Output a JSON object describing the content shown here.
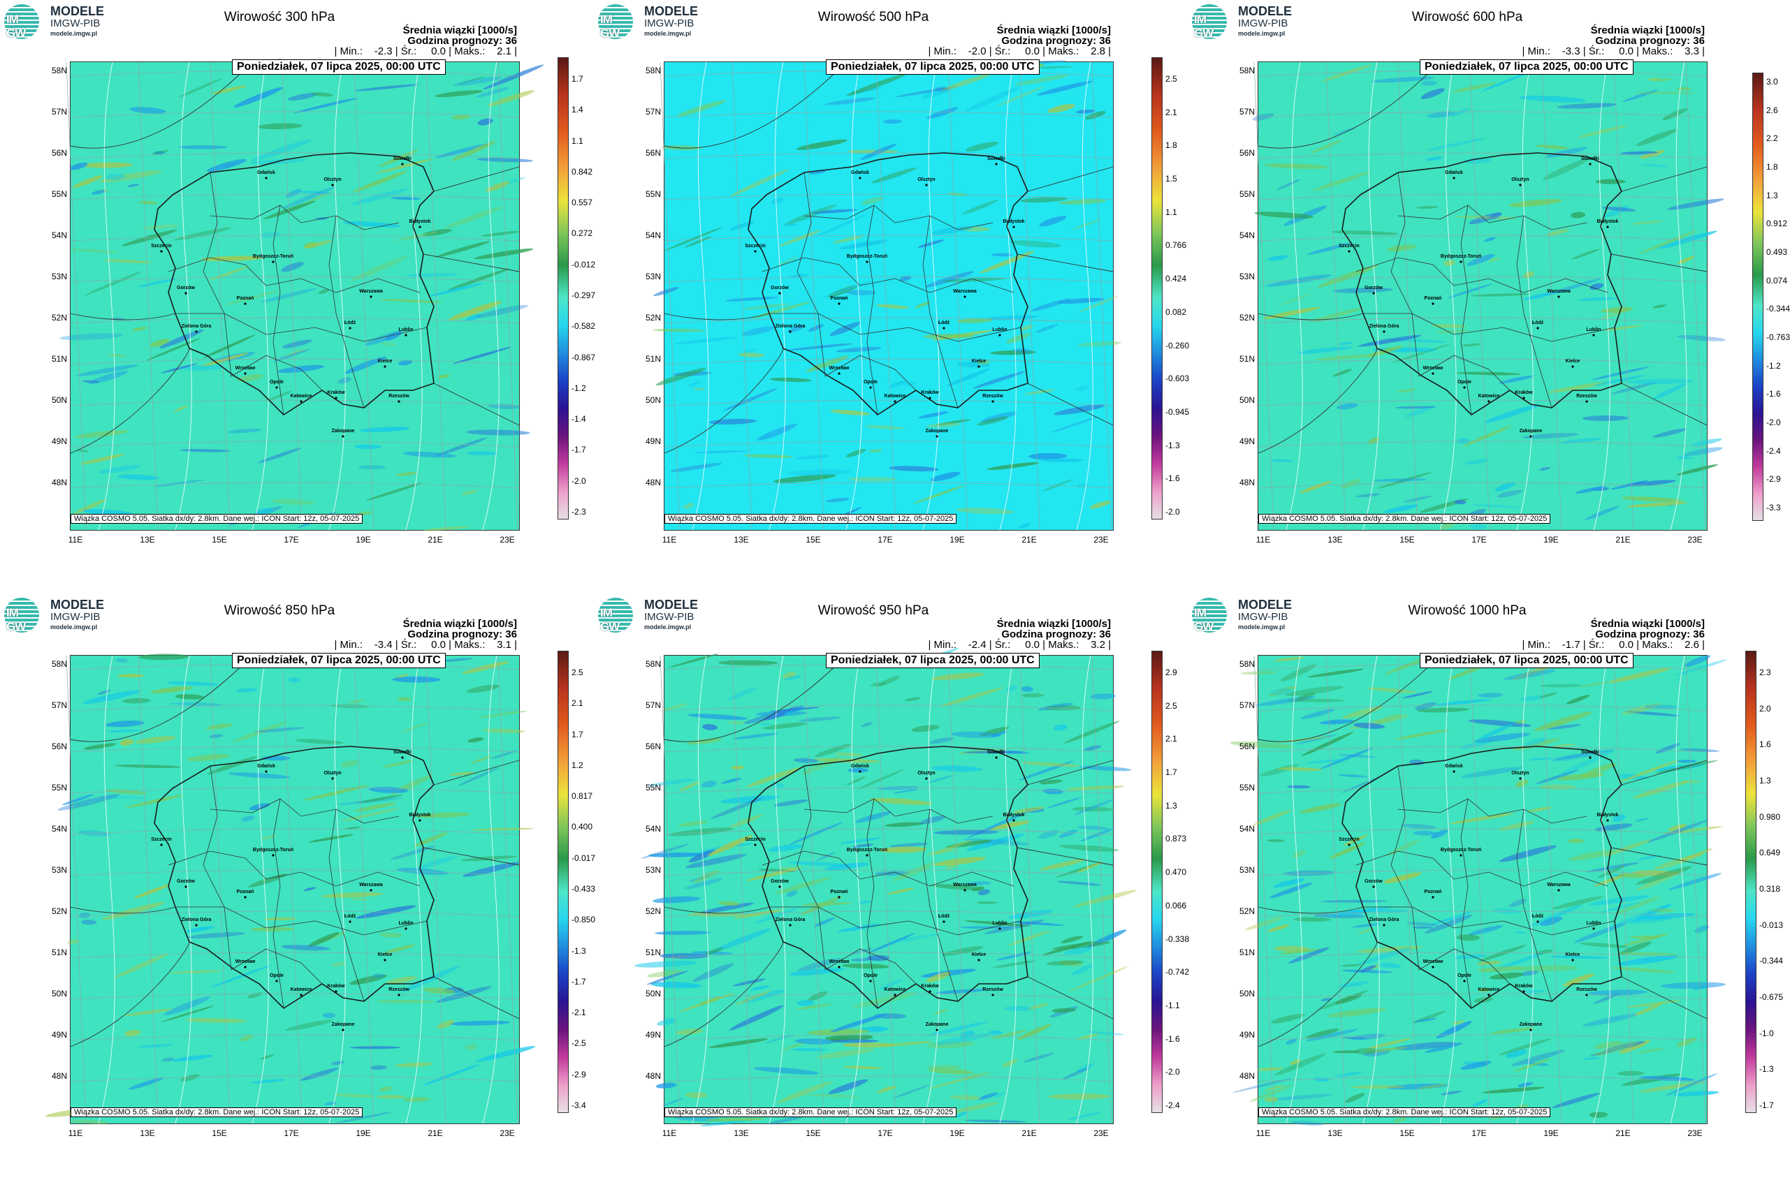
{
  "logo": {
    "line1": "MODELE",
    "line2": "IMGW-PIB",
    "url": "modele.imgw.pl",
    "mark": "IM GW"
  },
  "common": {
    "subtitle": "Średnia wiązki [1000/s]",
    "forecast_hour": "Godzina prognozy: 36",
    "date": "Poniedziałek, 07 lipca 2025, 00:00 UTC",
    "footer": "Wiązka  COSMO  5.05.  Siatka  dx/dy:  2.8km.  Dane  wej.:  ICON  Start:  12z,  05-07-2025",
    "lat_labels": [
      "58N",
      "57N",
      "56N",
      "55N",
      "54N",
      "53N",
      "52N",
      "51N",
      "50N",
      "49N",
      "48N"
    ],
    "lon_labels": [
      "11E",
      "13E",
      "15E",
      "17E",
      "19E",
      "21E",
      "23E"
    ],
    "cities": [
      "Gdańsk",
      "Suwałki",
      "Olsztyn",
      "Białystok",
      "Szczecin",
      "Bydgoszcz-Toruń",
      "Gorzów",
      "Poznań",
      "Warszawa",
      "Zielona Góra",
      "Łódź",
      "Lublin",
      "Wrocław",
      "Opole",
      "Kielce",
      "Katowice",
      "Kraków",
      "Rzeszów",
      "Zakopane"
    ]
  },
  "panels": [
    {
      "title": "Wirowość 300 hPa",
      "stats": "| Min.:    -2.3 | Śr.:     0.0 | Maks.:    2.1 |",
      "base": "#3fe3bf",
      "cbar": [
        "1.7",
        "1.4",
        "1.1",
        "0.842",
        "0.557",
        "0.272",
        "-0.012",
        "-0.297",
        "-0.582",
        "-0.867",
        "-1.2",
        "-1.4",
        "-1.7",
        "-2.0",
        "-2.3"
      ]
    },
    {
      "title": "Wirowość 500 hPa",
      "stats": "| Min.:    -2.0 | Śr.:     0.0 | Maks.:    2.8 |",
      "base": "#22e6f0",
      "cbar": [
        "2.5",
        "2.1",
        "1.8",
        "1.5",
        "1.1",
        "0.766",
        "0.424",
        "0.082",
        "-0.260",
        "-0.603",
        "-0.945",
        "-1.3",
        "-1.6",
        "-2.0"
      ]
    },
    {
      "title": "Wirowość 600 hPa",
      "stats": "| Min.:    -3.3 | Śr.:     0.0 | Maks.:    3.3 |",
      "base": "#3fe3bf",
      "cbar": [
        "3.0",
        "2.6",
        "2.2",
        "1.8",
        "1.3",
        "0.912",
        "0.493",
        "0.074",
        "-0.344",
        "-0.763",
        "-1.2",
        "-1.6",
        "-2.0",
        "-2.4",
        "-2.9",
        "-3.3"
      ]
    },
    {
      "title": "Wirowość 850 hPa",
      "stats": "| Min.:    -3.4 | Śr.:     0.0 | Maks.:    3.1 |",
      "base": "#3fe3bf",
      "cbar": [
        "2.5",
        "2.1",
        "1.7",
        "1.2",
        "0.817",
        "0.400",
        "-0.017",
        "-0.433",
        "-0.850",
        "-1.3",
        "-1.7",
        "-2.1",
        "-2.5",
        "-2.9",
        "-3.4"
      ]
    },
    {
      "title": "Wirowość 950 hPa",
      "stats": "| Min.:    -2.4 | Śr.:     0.0 | Maks.:    3.2 |",
      "base": "#3fe3bf",
      "cbar": [
        "2.9",
        "2.5",
        "2.1",
        "1.7",
        "1.3",
        "0.873",
        "0.470",
        "0.066",
        "-0.338",
        "-0.742",
        "-1.1",
        "-1.6",
        "-2.0",
        "-2.4"
      ]
    },
    {
      "title": "Wirowość 1000 hPa",
      "stats": "| Min.:    -1.7 | Śr.:     0.0 | Maks.:    2.6 |",
      "base": "#3fe3bf",
      "cbar": [
        "2.3",
        "2.0",
        "1.6",
        "1.3",
        "0.980",
        "0.649",
        "0.318",
        "-0.013",
        "-0.344",
        "-0.675",
        "-1.0",
        "-1.3",
        "-1.7"
      ]
    }
  ]
}
